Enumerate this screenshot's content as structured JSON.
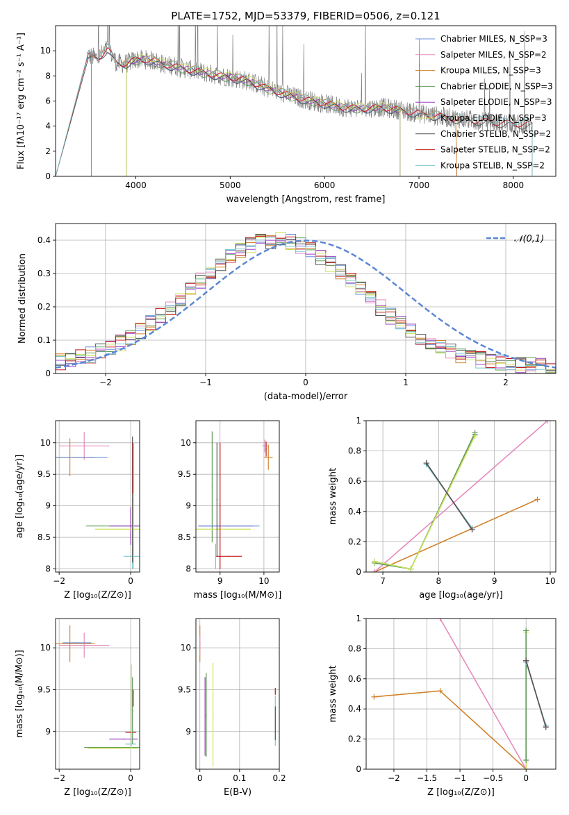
{
  "colors": {
    "Chabrier MILES": "#6a8fd8",
    "Salpeter MILES": "#e58bbd",
    "Kroupa MILES": "#d2822c",
    "Chabrier ELODIE": "#5f9a57",
    "Salpeter ELODIE": "#9b3fc4",
    "Kroupa ELODIE": "#cde35a",
    "Chabrier STELIB": "#555555",
    "Salpeter STELIB": "#c21818",
    "Kroupa STELIB": "#78c7d0",
    "data": "#808080",
    "gauss": "#5b86d4"
  },
  "chart_data": [
    {
      "id": "spectrum",
      "type": "line",
      "title": "PLATE=1752, MJD=53379, FIBERID=0506, z=0.121",
      "xlabel": "wavelength [Angstrom, rest frame]",
      "ylabel": "Flux [fλ10⁻¹⁷ erg cm⁻² s⁻¹ A⁻¹]",
      "xlim": [
        3150,
        8450
      ],
      "ylim": [
        0,
        12
      ],
      "xticks": [
        4000,
        5000,
        6000,
        7000,
        8000
      ],
      "yticks": [
        0,
        2,
        4,
        6,
        8,
        10
      ],
      "legend": "top-right",
      "legend_entries": [
        "Chabrier MILES, N_SSP=3",
        "Salpeter MILES, N_SSP=2",
        "Kroupa MILES, N_SSP=3",
        "Chabrier ELODIE, N_SSP=3",
        "Salpeter ELODIE, N_SSP=3",
        "Kroupa ELODIE, N_SSP=3",
        "Chabrier STELIB, N_SSP=2",
        "Salpeter STELIB, N_SSP=2",
        "Kroupa STELIB, N_SSP=2"
      ],
      "continuum": [
        [
          3500,
          9.6
        ],
        [
          3600,
          9.4
        ],
        [
          3700,
          10.2
        ],
        [
          3800,
          9.0
        ],
        [
          3900,
          9.0
        ],
        [
          4000,
          9.3
        ],
        [
          4100,
          9.3
        ],
        [
          4200,
          9.2
        ],
        [
          4300,
          8.9
        ],
        [
          4400,
          8.8
        ],
        [
          4500,
          8.6
        ],
        [
          4700,
          8.3
        ],
        [
          4900,
          8.0
        ],
        [
          5000,
          7.9
        ],
        [
          5200,
          7.6
        ],
        [
          5400,
          7.0
        ],
        [
          5600,
          6.5
        ],
        [
          5800,
          6.1
        ],
        [
          6000,
          5.8
        ],
        [
          6200,
          5.5
        ],
        [
          6400,
          5.4
        ],
        [
          6600,
          5.5
        ],
        [
          6800,
          5.3
        ],
        [
          7000,
          5.0
        ],
        [
          7400,
          4.6
        ],
        [
          7800,
          4.3
        ],
        [
          8200,
          4.1
        ]
      ],
      "model_ends": {
        "MILES": [
          3530,
          7400
        ],
        "ELODIE": [
          3900,
          6800
        ],
        "STELIB": [
          3150,
          8200
        ]
      }
    },
    {
      "id": "residuals",
      "type": "line",
      "xlabel": "(data-model)/error",
      "ylabel": "Normed distribution",
      "xlim": [
        -2.5,
        2.5
      ],
      "ylim": [
        0,
        0.45
      ],
      "xticks": [
        -2,
        -1,
        0,
        1,
        2
      ],
      "yticks": [
        0.0,
        0.1,
        0.2,
        0.3,
        0.4
      ],
      "legend": "top-right",
      "gauss_label": "𝒩(0,1)"
    },
    {
      "id": "age-vs-Z",
      "type": "scatter",
      "xlabel": "Z [log₁₀(Z/Z⊙)]",
      "ylabel": "age  [log₁₀(age/yr)]",
      "xlim": [
        -2.1,
        0.25
      ],
      "ylim": [
        7.95,
        10.35
      ],
      "xticks": [
        -2,
        0
      ],
      "yticks": [
        8.0,
        8.5,
        9.0,
        9.5,
        10.0
      ],
      "points": [
        {
          "m": "Kroupa MILES",
          "x": -1.7,
          "y": 9.77,
          "xerr": 0.7,
          "yerr": 0.3
        },
        {
          "m": "Salpeter MILES",
          "x": -1.3,
          "y": 9.95,
          "xerr": 0.7,
          "yerr": 0.22
        },
        {
          "m": "Chabrier MILES",
          "x": -1.5,
          "y": 9.77,
          "xerr": 0.85,
          "yerr": 0.0
        },
        {
          "m": "Chabrier ELODIE",
          "x": -0.45,
          "y": 8.68,
          "xerr": 0.8,
          "yerr": 0.0
        },
        {
          "m": "Salpeter ELODIE",
          "x": 0.0,
          "y": 8.68,
          "xerr": 0.6,
          "yerr": 0.3
        },
        {
          "m": "Kroupa ELODIE",
          "x": -0.3,
          "y": 8.63,
          "xerr": 0.7,
          "yerr": 0.0
        },
        {
          "m": "Kroupa STELIB",
          "x": 0.05,
          "y": 8.2,
          "xerr": 0.25,
          "yerr": 0.2
        },
        {
          "m": "Chabrier STELIB",
          "x": 0.05,
          "y": 9.1,
          "xerr": 0.0,
          "yerr": 1.0
        },
        {
          "m": "Kroupa ELODIE",
          "x": 0.08,
          "y": 9.0,
          "xerr": 0.0,
          "yerr": 1.0
        },
        {
          "m": "Salpeter STELIB",
          "x": 0.06,
          "y": 9.6,
          "xerr": 0.0,
          "yerr": 0.4
        }
      ]
    },
    {
      "id": "age-vs-mass",
      "type": "scatter",
      "xlabel": "mass [log₁₀(M/M⊙)]",
      "ylabel": "",
      "xlim": [
        8.45,
        10.35
      ],
      "ylim": [
        7.95,
        10.35
      ],
      "xticks": [
        9,
        10
      ],
      "yticks": [
        8.0,
        8.5,
        9.0,
        9.5,
        10.0
      ],
      "points": [
        {
          "m": "Chabrier ELODIE",
          "x": 8.82,
          "y": 9.3,
          "xerr": 0.0,
          "yerr": 0.88
        },
        {
          "m": "Salpeter ELODIE",
          "x": 9.15,
          "y": 8.68,
          "xerr": 0.63,
          "yerr": 0.0
        },
        {
          "m": "Chabrier MILES",
          "x": 9.2,
          "y": 8.68,
          "xerr": 0.7,
          "yerr": 0.0
        },
        {
          "m": "Kroupa ELODIE",
          "x": 8.95,
          "y": 8.63,
          "xerr": 0.75,
          "yerr": 0.0
        },
        {
          "m": "Salpeter STELIB",
          "x": 9.0,
          "y": 9.0,
          "xerr": 0.0,
          "yerr": 1.0
        },
        {
          "m": "Salpeter STELIB",
          "x": 9.2,
          "y": 8.2,
          "xerr": 0.3,
          "yerr": 0.0
        },
        {
          "m": "Kroupa STELIB",
          "x": 8.9,
          "y": 8.2,
          "xerr": 0.0,
          "yerr": 0.2
        },
        {
          "m": "Chabrier STELIB",
          "x": 8.93,
          "y": 9.1,
          "xerr": 0.0,
          "yerr": 0.9
        },
        {
          "m": "Salpeter MILES",
          "x": 10.02,
          "y": 9.95,
          "xerr": 0.06,
          "yerr": 0.1
        },
        {
          "m": "Kroupa MILES",
          "x": 10.1,
          "y": 9.77,
          "xerr": 0.1,
          "yerr": 0.2
        },
        {
          "m": "Salpeter STELIB",
          "x": 10.05,
          "y": 9.9,
          "xerr": 0.0,
          "yerr": 0.12
        }
      ]
    },
    {
      "id": "weight-vs-age",
      "type": "line",
      "xlabel": "age  [log₁₀(age/yr)]",
      "ylabel": "mass weight",
      "xlim": [
        6.7,
        10.1
      ],
      "ylim": [
        0,
        1
      ],
      "xticks": [
        7,
        8,
        9,
        10
      ],
      "yticks": [
        0.0,
        0.2,
        0.4,
        0.6,
        0.8,
        1.0
      ],
      "series": [
        {
          "m": "Kroupa MILES",
          "x": [
            6.85,
            9.77
          ],
          "y": [
            0.0,
            0.48
          ]
        },
        {
          "m": "Salpeter MILES",
          "x": [
            6.85,
            9.95
          ],
          "y": [
            0.0,
            1.0
          ]
        },
        {
          "m": "Chabrier MILES",
          "x": [
            6.85,
            7.5,
            8.65
          ],
          "y": [
            0.07,
            0.02,
            0.91
          ]
        },
        {
          "m": "Chabrier ELODIE",
          "x": [
            6.85,
            7.5,
            8.65
          ],
          "y": [
            0.06,
            0.02,
            0.92
          ]
        },
        {
          "m": "Kroupa ELODIE",
          "x": [
            6.85,
            7.5,
            8.65
          ],
          "y": [
            0.07,
            0.02,
            0.9
          ]
        },
        {
          "m": "Salpeter STELIB",
          "x": [
            7.78,
            8.6
          ],
          "y": [
            0.72,
            0.28
          ]
        },
        {
          "m": "Kroupa STELIB",
          "x": [
            7.78,
            8.6
          ],
          "y": [
            0.71,
            0.29
          ]
        },
        {
          "m": "Chabrier STELIB",
          "x": [
            7.78,
            8.6
          ],
          "y": [
            0.72,
            0.28
          ]
        }
      ]
    },
    {
      "id": "mass-vs-Z",
      "type": "scatter",
      "xlabel": "Z [log₁₀(Z/Z⊙)]",
      "ylabel": "mass [log₁₀(M/M⊙)]",
      "xlim": [
        -2.1,
        0.25
      ],
      "ylim": [
        8.55,
        10.35
      ],
      "xticks": [
        -2,
        0
      ],
      "yticks": [
        9.0,
        9.5,
        10.0
      ],
      "points": [
        {
          "m": "Kroupa MILES",
          "x": -1.7,
          "y": 10.05,
          "xerr": 0.7,
          "yerr": 0.22
        },
        {
          "m": "Salpeter MILES",
          "x": -1.3,
          "y": 10.03,
          "xerr": 0.7,
          "yerr": 0.15
        },
        {
          "m": "Chabrier MILES",
          "x": -1.5,
          "y": 10.06,
          "xerr": 0.4,
          "yerr": 0.0
        },
        {
          "m": "Chabrier ELODIE",
          "x": -0.5,
          "y": 8.81,
          "xerr": 0.8,
          "yerr": 0.0
        },
        {
          "m": "Kroupa ELODIE",
          "x": -0.5,
          "y": 8.8,
          "xerr": 0.7,
          "yerr": 0.0
        },
        {
          "m": "Salpeter ELODIE",
          "x": -0.2,
          "y": 8.91,
          "xerr": 0.4,
          "yerr": 0.0
        },
        {
          "m": "Salpeter STELIB",
          "x": 0.0,
          "y": 8.99,
          "xerr": 0.15,
          "yerr": 0.0
        },
        {
          "m": "Kroupa STELIB",
          "x": 0.0,
          "y": 8.85,
          "xerr": 0.15,
          "yerr": 0.0
        },
        {
          "m": "Kroupa ELODIE",
          "x": 0.02,
          "y": 9.3,
          "xerr": 0.0,
          "yerr": 0.5
        },
        {
          "m": "Chabrier ELODIE",
          "x": 0.05,
          "y": 9.25,
          "xerr": 0.0,
          "yerr": 0.4
        },
        {
          "m": "Salpeter STELIB",
          "x": 0.07,
          "y": 9.4,
          "xerr": 0.0,
          "yerr": 0.1
        }
      ]
    },
    {
      "id": "mass-vs-EBV",
      "type": "scatter",
      "xlabel": "E(B-V)",
      "ylabel": "",
      "xlim": [
        -0.01,
        0.2
      ],
      "ylim": [
        8.55,
        10.35
      ],
      "xticks": [
        0.0,
        0.1,
        0.2
      ],
      "yticks": [
        9.0,
        9.5,
        10.0
      ],
      "points": [
        {
          "m": "Kroupa MILES",
          "x": 0.0,
          "y": 10.05,
          "xerr": 0.0,
          "yerr": 0.22
        },
        {
          "m": "Salpeter MILES",
          "x": 0.0,
          "y": 10.03,
          "xerr": 0.0,
          "yerr": 0.12
        },
        {
          "m": "Salpeter ELODIE",
          "x": 0.013,
          "y": 9.18,
          "xerr": 0.0,
          "yerr": 0.47
        },
        {
          "m": "Chabrier ELODIE",
          "x": 0.016,
          "y": 9.2,
          "xerr": 0.0,
          "yerr": 0.5
        },
        {
          "m": "Kroupa ELODIE",
          "x": 0.033,
          "y": 9.2,
          "xerr": 0.0,
          "yerr": 0.62
        },
        {
          "m": "Salpeter STELIB",
          "x": 0.19,
          "y": 9.48,
          "xerr": 0.0,
          "yerr": 0.04
        },
        {
          "m": "Kroupa STELIB",
          "x": 0.19,
          "y": 9.13,
          "xerr": 0.0,
          "yerr": 0.3
        },
        {
          "m": "Chabrier STELIB",
          "x": 0.19,
          "y": 9.1,
          "xerr": 0.0,
          "yerr": 0.2
        }
      ]
    },
    {
      "id": "weight-vs-Z",
      "type": "line",
      "xlabel": "Z [log₁₀(Z/Z⊙)]",
      "ylabel": "mass weight",
      "xlim": [
        -2.42,
        0.45
      ],
      "ylim": [
        0,
        1
      ],
      "xticks": [
        -2.0,
        -1.5,
        -1.0,
        -0.5,
        0.0
      ],
      "yticks": [
        0.0,
        0.2,
        0.4,
        0.6,
        0.8,
        1.0
      ],
      "series": [
        {
          "m": "Kroupa MILES",
          "x": [
            -2.3,
            -1.3,
            0.0
          ],
          "y": [
            0.48,
            0.52,
            0.0
          ]
        },
        {
          "m": "Salpeter MILES",
          "x": [
            -1.3,
            0.0
          ],
          "y": [
            1.0,
            0.0
          ]
        },
        {
          "m": "Kroupa ELODIE",
          "x": [
            0.0,
            0.0,
            0.0
          ],
          "y": [
            0.0,
            0.06,
            0.91
          ]
        },
        {
          "m": "Chabrier ELODIE",
          "x": [
            0.0,
            0.0
          ],
          "y": [
            0.06,
            0.92
          ]
        },
        {
          "m": "Salpeter STELIB",
          "x": [
            0.0,
            0.3
          ],
          "y": [
            0.72,
            0.28
          ]
        },
        {
          "m": "Kroupa STELIB",
          "x": [
            0.0,
            0.3
          ],
          "y": [
            0.71,
            0.29
          ]
        },
        {
          "m": "Chabrier STELIB",
          "x": [
            0.0,
            0.3
          ],
          "y": [
            0.72,
            0.28
          ]
        }
      ]
    }
  ]
}
